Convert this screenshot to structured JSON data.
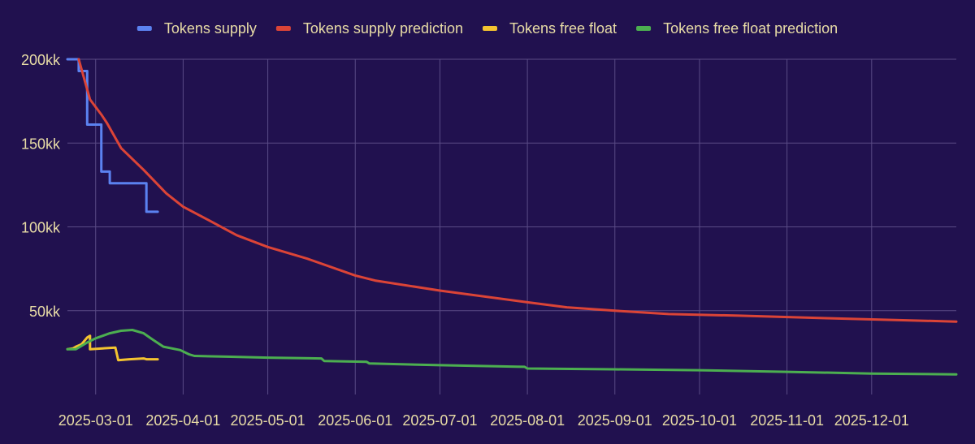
{
  "chart_data": {
    "type": "line",
    "title": "",
    "xlabel": "",
    "ylabel": "",
    "ylim": [
      0,
      200000000
    ],
    "y_ticks": [
      {
        "value": 50000000,
        "label": "50kk"
      },
      {
        "value": 100000000,
        "label": "100kk"
      },
      {
        "value": 150000000,
        "label": "150kk"
      },
      {
        "value": 200000000,
        "label": "200kk"
      }
    ],
    "x_range": [
      "2025-02-19",
      "2025-12-31"
    ],
    "x_ticks": [
      "2025-03-01",
      "2025-04-01",
      "2025-05-01",
      "2025-06-01",
      "2025-07-01",
      "2025-08-01",
      "2025-09-01",
      "2025-10-01",
      "2025-11-01",
      "2025-12-01"
    ],
    "grid": true,
    "legend_position": "top",
    "series": [
      {
        "name": "Tokens supply",
        "color": "#5b82f0",
        "step": true,
        "points": [
          [
            "2025-02-19",
            200000000
          ],
          [
            "2025-02-23",
            200000000
          ],
          [
            "2025-02-23",
            193000000
          ],
          [
            "2025-02-26",
            193000000
          ],
          [
            "2025-02-26",
            161000000
          ],
          [
            "2025-03-03",
            161000000
          ],
          [
            "2025-03-03",
            133000000
          ],
          [
            "2025-03-06",
            133000000
          ],
          [
            "2025-03-06",
            126000000
          ],
          [
            "2025-03-19",
            126000000
          ],
          [
            "2025-03-19",
            109000000
          ],
          [
            "2025-03-23",
            109000000
          ]
        ]
      },
      {
        "name": "Tokens supply prediction",
        "color": "#db4437",
        "points": [
          [
            "2025-02-23",
            200000000
          ],
          [
            "2025-02-27",
            176000000
          ],
          [
            "2025-03-03",
            167000000
          ],
          [
            "2025-03-05",
            162000000
          ],
          [
            "2025-03-10",
            147000000
          ],
          [
            "2025-03-18",
            134000000
          ],
          [
            "2025-03-26",
            120000000
          ],
          [
            "2025-04-01",
            112000000
          ],
          [
            "2025-04-10",
            104000000
          ],
          [
            "2025-04-20",
            95000000
          ],
          [
            "2025-05-01",
            88000000
          ],
          [
            "2025-05-15",
            81000000
          ],
          [
            "2025-06-01",
            71000000
          ],
          [
            "2025-06-08",
            68000000
          ],
          [
            "2025-07-01",
            62000000
          ],
          [
            "2025-08-01",
            55000000
          ],
          [
            "2025-08-15",
            52000000
          ],
          [
            "2025-09-01",
            50000000
          ],
          [
            "2025-09-20",
            48000000
          ],
          [
            "2025-10-15",
            47000000
          ],
          [
            "2025-11-15",
            45500000
          ],
          [
            "2025-12-31",
            43500000
          ]
        ]
      },
      {
        "name": "Tokens free float",
        "color": "#f4c430",
        "points": [
          [
            "2025-02-19",
            27000000
          ],
          [
            "2025-02-21",
            27500000
          ],
          [
            "2025-02-22",
            28500000
          ],
          [
            "2025-02-24",
            30000000
          ],
          [
            "2025-02-26",
            34000000
          ],
          [
            "2025-02-27",
            35000000
          ],
          [
            "2025-02-27",
            27000000
          ],
          [
            "2025-03-08",
            28000000
          ],
          [
            "2025-03-09",
            20500000
          ],
          [
            "2025-03-13",
            21000000
          ],
          [
            "2025-03-18",
            21500000
          ],
          [
            "2025-03-19",
            21000000
          ],
          [
            "2025-03-23",
            21000000
          ]
        ]
      },
      {
        "name": "Tokens free float prediction",
        "color": "#4caf50",
        "points": [
          [
            "2025-02-19",
            27000000
          ],
          [
            "2025-02-22",
            27000000
          ],
          [
            "2025-02-26",
            31000000
          ],
          [
            "2025-03-01",
            33500000
          ],
          [
            "2025-03-06",
            36500000
          ],
          [
            "2025-03-10",
            38000000
          ],
          [
            "2025-03-14",
            38500000
          ],
          [
            "2025-03-18",
            36500000
          ],
          [
            "2025-03-21",
            33000000
          ],
          [
            "2025-03-25",
            28500000
          ],
          [
            "2025-03-31",
            26500000
          ],
          [
            "2025-04-03",
            24000000
          ],
          [
            "2025-04-05",
            23000000
          ],
          [
            "2025-04-18",
            22500000
          ],
          [
            "2025-05-01",
            22000000
          ],
          [
            "2025-05-20",
            21500000
          ],
          [
            "2025-05-21",
            20000000
          ],
          [
            "2025-06-05",
            19500000
          ],
          [
            "2025-06-06",
            18500000
          ],
          [
            "2025-07-01",
            17500000
          ],
          [
            "2025-07-31",
            16500000
          ],
          [
            "2025-08-01",
            15500000
          ],
          [
            "2025-09-01",
            15000000
          ],
          [
            "2025-10-01",
            14500000
          ],
          [
            "2025-11-01",
            13500000
          ],
          [
            "2025-12-01",
            12500000
          ],
          [
            "2025-12-31",
            12000000
          ]
        ]
      }
    ]
  }
}
